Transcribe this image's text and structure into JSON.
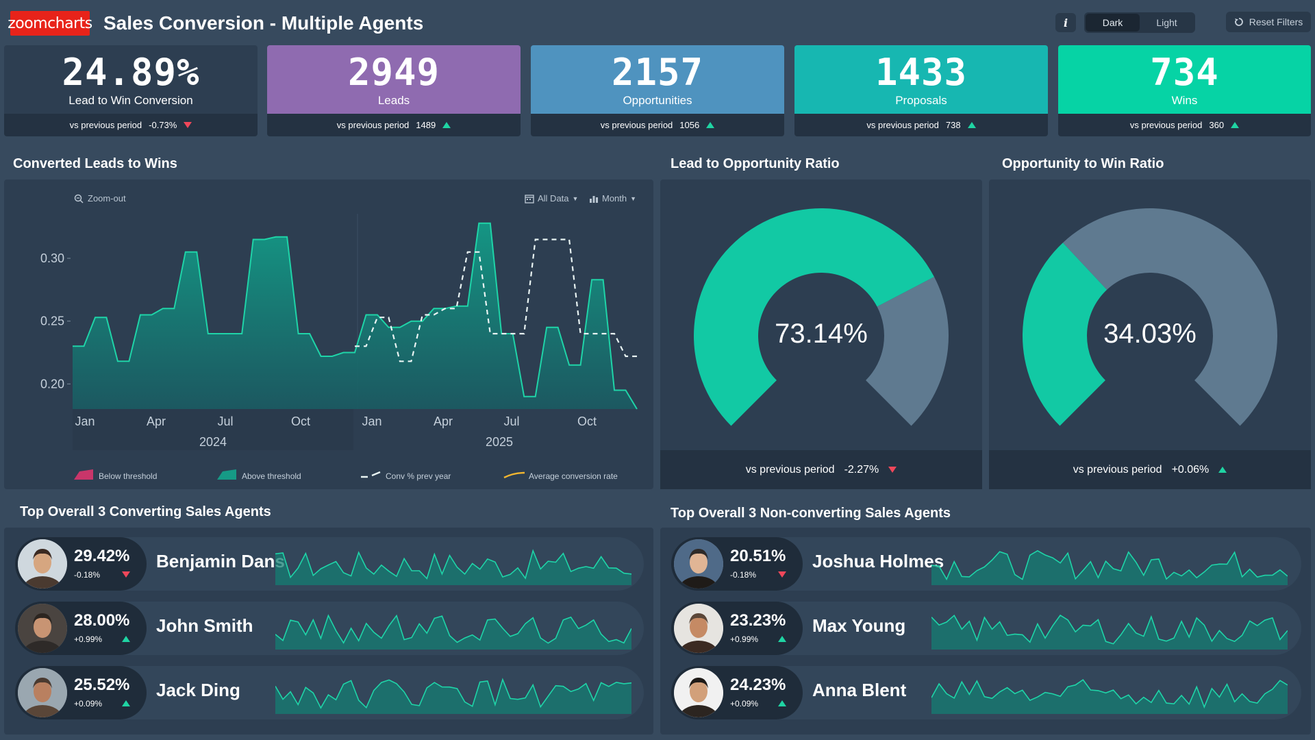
{
  "header": {
    "logo": "zoomcharts",
    "title": "Sales Conversion - Multiple Agents",
    "info": "i",
    "theme_dark": "Dark",
    "theme_light": "Light",
    "reset": "Reset Filters"
  },
  "kpis": [
    {
      "value": "24.89%",
      "label": "Lead to Win Conversion",
      "cmp_label": "vs previous period",
      "cmp_value": "-0.73%",
      "trend": "down",
      "color": "#2d3e51"
    },
    {
      "value": "2949",
      "label": "Leads",
      "cmp_label": "vs previous period",
      "cmp_value": "1489",
      "trend": "up",
      "color": "#8f6bb0"
    },
    {
      "value": "2157",
      "label": "Opportunities",
      "cmp_label": "vs previous period",
      "cmp_value": "1056",
      "trend": "up",
      "color": "#4f93bf"
    },
    {
      "value": "1433",
      "label": "Proposals",
      "cmp_label": "vs previous period",
      "cmp_value": "738",
      "trend": "up",
      "color": "#17b7b1"
    },
    {
      "value": "734",
      "label": "Wins",
      "cmp_label": "vs previous period",
      "cmp_value": "360",
      "trend": "up",
      "color": "#06d3a5"
    }
  ],
  "sections": {
    "converted": "Converted Leads to Wins",
    "lead_opp": "Lead to Opportunity Ratio",
    "opp_win": "Opportunity to Win Ratio",
    "top_converting": "Top Overall 3 Converting Sales Agents",
    "top_nonconverting": "Top Overall 3 Non-converting Sales Agents"
  },
  "chart_toolbar": {
    "zoom_out": "Zoom-out",
    "all_data": "All Data",
    "month": "Month"
  },
  "chart_data": {
    "type": "area",
    "y_ticks": [
      "0.30",
      "0.25",
      "0.20"
    ],
    "ylim": [
      0.18,
      0.33
    ],
    "x_tick_labels": [
      "Jan",
      "Apr",
      "Jul",
      "Oct",
      "Jan",
      "Apr",
      "Jul",
      "Oct"
    ],
    "year_labels": [
      "2024",
      "2025"
    ],
    "series": [
      {
        "name": "Above threshold",
        "values": [
          0.23,
          0.23,
          0.253,
          0.253,
          0.218,
          0.218,
          0.255,
          0.255,
          0.26,
          0.26,
          0.305,
          0.305,
          0.24,
          0.24,
          0.24,
          0.24,
          0.315,
          0.315,
          0.317,
          0.317,
          0.24,
          0.24,
          0.222,
          0.222,
          0.225,
          0.225,
          0.255,
          0.255,
          0.245,
          0.245,
          0.25,
          0.25,
          0.26,
          0.26,
          0.262,
          0.262,
          0.328,
          0.328,
          0.24,
          0.24,
          0.19,
          0.19,
          0.245,
          0.245,
          0.215,
          0.215,
          0.283,
          0.283,
          0.195,
          0.195,
          0.18
        ]
      },
      {
        "name": "Conv % prev year",
        "values": [
          0.23,
          0.23,
          0.253,
          0.253,
          0.218,
          0.218,
          0.255,
          0.255,
          0.26,
          0.26,
          0.305,
          0.305,
          0.24,
          0.24,
          0.24,
          0.24,
          0.315,
          0.315,
          0.315,
          0.315,
          0.24,
          0.24,
          0.24,
          0.24,
          0.222,
          0.222
        ]
      }
    ],
    "legend": [
      "Below threshold",
      "Above threshold",
      "Conv % prev year",
      "Average conversion rate"
    ]
  },
  "gauges": [
    {
      "value": "73.14%",
      "fraction": 0.7314,
      "cmp_label": "vs previous period",
      "cmp_value": "-2.27%",
      "trend": "down"
    },
    {
      "value": "34.03%",
      "fraction": 0.3403,
      "cmp_label": "vs previous period",
      "cmp_value": "+0.06%",
      "trend": "up"
    }
  ],
  "agents_converting": [
    {
      "pct": "29.42%",
      "change": "-0.18%",
      "trend": "down",
      "name": "Benjamin Dans"
    },
    {
      "pct": "28.00%",
      "change": "+0.99%",
      "trend": "up",
      "name": "John Smith"
    },
    {
      "pct": "25.52%",
      "change": "+0.09%",
      "trend": "up",
      "name": "Jack Ding"
    }
  ],
  "agents_nonconverting": [
    {
      "pct": "20.51%",
      "change": "-0.18%",
      "trend": "down",
      "name": "Joshua Holmes"
    },
    {
      "pct": "23.23%",
      "change": "+0.99%",
      "trend": "up",
      "name": "Max Young"
    },
    {
      "pct": "24.23%",
      "change": "+0.09%",
      "trend": "up",
      "name": "Anna Blent"
    }
  ],
  "colors": {
    "accent": "#12c9a4",
    "gauge_rest": "#5f7a90",
    "panel": "#2d3e51",
    "down": "#f0475a",
    "up": "#1fd4a3"
  }
}
